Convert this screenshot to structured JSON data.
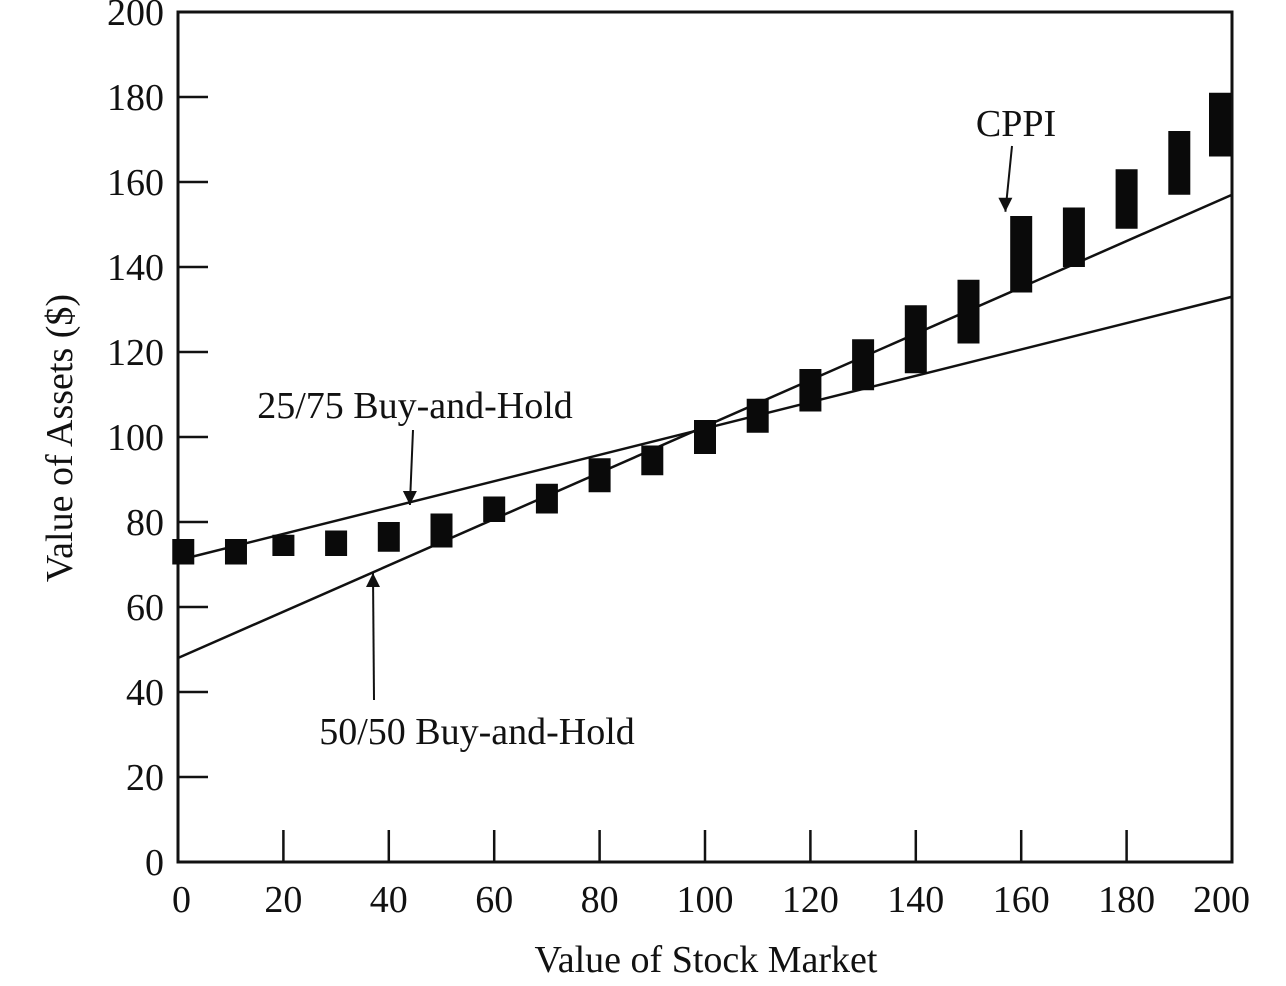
{
  "chart_data": {
    "type": "line",
    "xlabel": "Value of Stock Market",
    "ylabel": "Value of Assets ($)",
    "xlim": [
      0,
      200
    ],
    "ylim": [
      0,
      200
    ],
    "xticks": [
      0,
      20,
      40,
      60,
      80,
      100,
      120,
      140,
      160,
      180,
      200
    ],
    "yticks": [
      0,
      20,
      40,
      60,
      80,
      100,
      120,
      140,
      160,
      180,
      200
    ],
    "grid": false,
    "series": [
      {
        "name": "25/75 Buy-and-Hold",
        "style": "line",
        "x": [
          0,
          200
        ],
        "y": [
          71,
          133
        ]
      },
      {
        "name": "50/50 Buy-and-Hold",
        "style": "line",
        "x": [
          0,
          200
        ],
        "y": [
          48,
          157
        ]
      },
      {
        "name": "CPPI",
        "style": "range-bars",
        "x": [
          1,
          11,
          20,
          30,
          40,
          50,
          60,
          70,
          80,
          90,
          100,
          110,
          120,
          130,
          140,
          150,
          160,
          170,
          180,
          190,
          200
        ],
        "low": [
          70,
          70,
          72,
          72,
          73,
          74,
          80,
          82,
          87,
          91,
          96,
          101,
          106,
          111,
          115,
          122,
          134,
          140,
          149,
          157,
          166
        ],
        "high": [
          76,
          76,
          77,
          78,
          80,
          82,
          86,
          89,
          95,
          98,
          104,
          109,
          116,
          123,
          131,
          137,
          152,
          154,
          163,
          172,
          181
        ]
      }
    ],
    "annotations": [
      {
        "text": "CPPI",
        "arrow_to": [
          157,
          153
        ]
      },
      {
        "text": "25/75 Buy-and-Hold",
        "arrow_to": [
          44,
          84
        ]
      },
      {
        "text": "50/50 Buy-and-Hold",
        "arrow_to": [
          37,
          68
        ]
      }
    ]
  }
}
